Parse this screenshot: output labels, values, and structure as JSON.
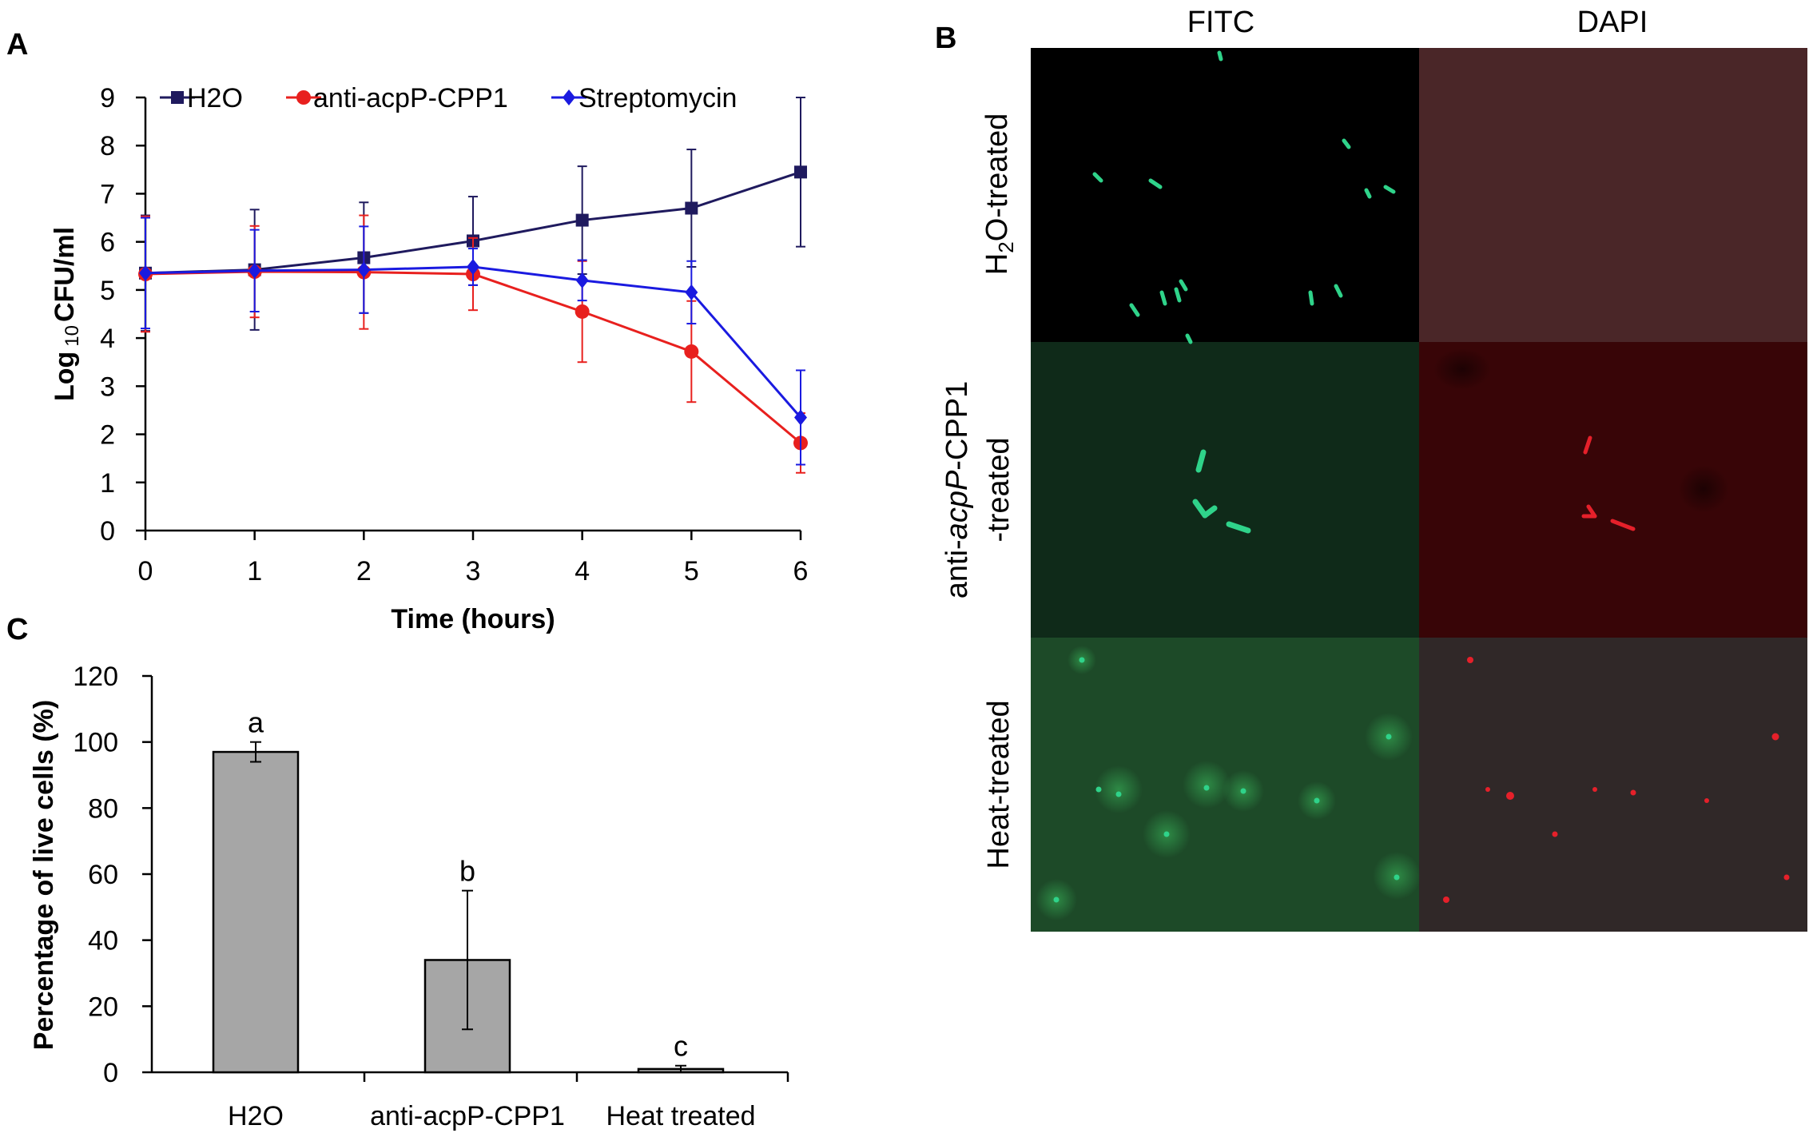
{
  "panels": {
    "a": "A",
    "b": "B",
    "c": "C"
  },
  "chart_data": [
    {
      "type": "line",
      "panel": "A",
      "xlabel": "Time (hours)",
      "ylabel_prefix": "Log",
      "ylabel_sub": "10",
      "ylabel_suffix": "CFU/ml",
      "xlim": [
        0,
        6
      ],
      "ylim": [
        0,
        9
      ],
      "x_ticks": [
        "0",
        "1",
        "2",
        "3",
        "4",
        "5",
        "6"
      ],
      "y_ticks": [
        "0",
        "1",
        "2",
        "3",
        "4",
        "5",
        "6",
        "7",
        "8",
        "9"
      ],
      "legend_position": "top",
      "x": [
        0,
        1,
        2,
        3,
        4,
        5,
        6
      ],
      "series": [
        {
          "name": "H2O",
          "color": "#1f1a5e",
          "marker": "square",
          "values": [
            5.35,
            5.42,
            5.67,
            6.02,
            6.45,
            6.7,
            7.45
          ],
          "errors": [
            1.2,
            1.25,
            1.15,
            0.92,
            1.12,
            1.22,
            1.55
          ]
        },
        {
          "name": "anti-acpP-CPP1",
          "color": "#e8201e",
          "marker": "circle",
          "values": [
            5.33,
            5.38,
            5.37,
            5.33,
            4.55,
            3.72,
            1.82
          ],
          "errors": [
            1.2,
            0.95,
            1.18,
            0.75,
            1.05,
            1.05,
            0.62
          ]
        },
        {
          "name": "Streptomycin",
          "color": "#1a1ae0",
          "marker": "diamond",
          "values": [
            5.35,
            5.4,
            5.42,
            5.48,
            5.2,
            4.95,
            2.35
          ],
          "errors": [
            1.15,
            0.85,
            0.9,
            0.38,
            0.42,
            0.65,
            0.98
          ]
        }
      ]
    },
    {
      "type": "bar",
      "panel": "C",
      "ylabel": "Percentage of live cells (%)",
      "ylim": [
        0,
        120
      ],
      "y_ticks": [
        "0",
        "20",
        "40",
        "60",
        "80",
        "100",
        "120"
      ],
      "categories": [
        "H2O",
        "anti-acpP-CPP1",
        "Heat treated"
      ],
      "values": [
        97,
        34,
        1
      ],
      "errors": [
        3,
        21,
        1
      ],
      "significance": [
        "a",
        "b",
        "c"
      ],
      "bar_color": "#a6a6a6"
    }
  ],
  "micrographs": {
    "columns": [
      "FITC",
      "DAPI"
    ],
    "rows": [
      {
        "main": "H",
        "sub": "2",
        "rest": "O-treated"
      },
      {
        "line1_pre": "anti-",
        "line1_italic": "acpP",
        "line1_post": "-CPP1",
        "line2": "-treated"
      },
      {
        "main": "Heat-treated"
      }
    ],
    "panel_colors": {
      "fitc_water": "#000000",
      "dapi_water": "#4a2628",
      "fitc_acpp": "#0f2a19",
      "dapi_acpp": "#380507",
      "fitc_heat": "#1d4a28",
      "dapi_heat": "#302828",
      "green_cell": "#2fd38a",
      "red_cell": "#e5202a"
    }
  }
}
